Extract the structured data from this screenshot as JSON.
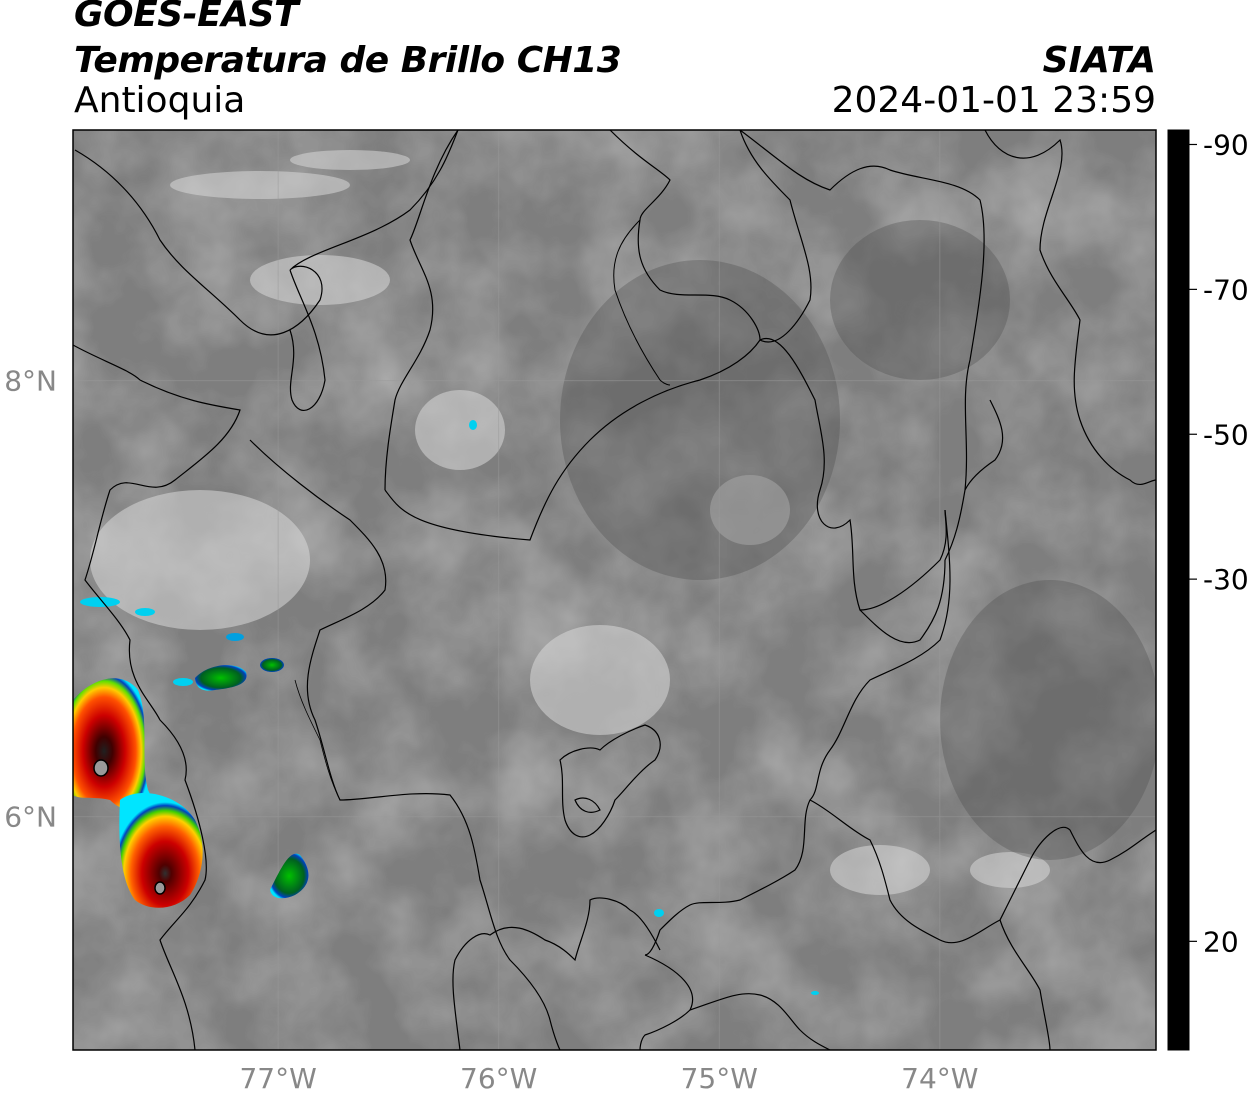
{
  "header": {
    "satellite": "GOES-EAST",
    "product": "Temperatura de Brillo CH13",
    "region": "Antioquia",
    "organization": "SIATA",
    "datetime": "2024-01-01 23:59"
  },
  "map": {
    "lon_range": [
      -77.93,
      -73.02
    ],
    "lat_range": [
      4.93,
      9.15
    ],
    "lat_labels": [
      "8°N",
      "6°N"
    ],
    "lat_values": [
      8,
      6
    ],
    "lon_labels": [
      "77°W",
      "76°W",
      "75°W",
      "74°W"
    ],
    "lon_values": [
      -77,
      -76,
      -75,
      -74
    ],
    "gridlines": true
  },
  "colorbar": {
    "units_ticks": [
      "20",
      "-30",
      "-50",
      "-70",
      "-90"
    ],
    "tick_values": [
      20,
      -30,
      -50,
      -70,
      -90
    ],
    "range": [
      -92,
      35
    ],
    "stops": [
      {
        "v": 35,
        "c": "#000000"
      },
      {
        "v": 20,
        "c": "#4a4a4a"
      },
      {
        "v": 0,
        "c": "#b8b8b8"
      },
      {
        "v": -20,
        "c": "#f4f4f4"
      },
      {
        "v": -20.5,
        "c": "#00e5ff"
      },
      {
        "v": -27,
        "c": "#0040c0"
      },
      {
        "v": -30,
        "c": "#001070"
      },
      {
        "v": -34,
        "c": "#006020"
      },
      {
        "v": -40,
        "c": "#00d000"
      },
      {
        "v": -46,
        "c": "#d0ff00"
      },
      {
        "v": -50,
        "c": "#ffcc00"
      },
      {
        "v": -56,
        "c": "#ff4000"
      },
      {
        "v": -62,
        "c": "#cc0000"
      },
      {
        "v": -68,
        "c": "#300000"
      },
      {
        "v": -70,
        "c": "#000000"
      },
      {
        "v": -76,
        "c": "#d0c0c8"
      },
      {
        "v": -80,
        "c": "#ff66cc"
      },
      {
        "v": -90,
        "c": "#8a1a8a"
      },
      {
        "v": -90.5,
        "c": "#ffffff"
      }
    ]
  }
}
